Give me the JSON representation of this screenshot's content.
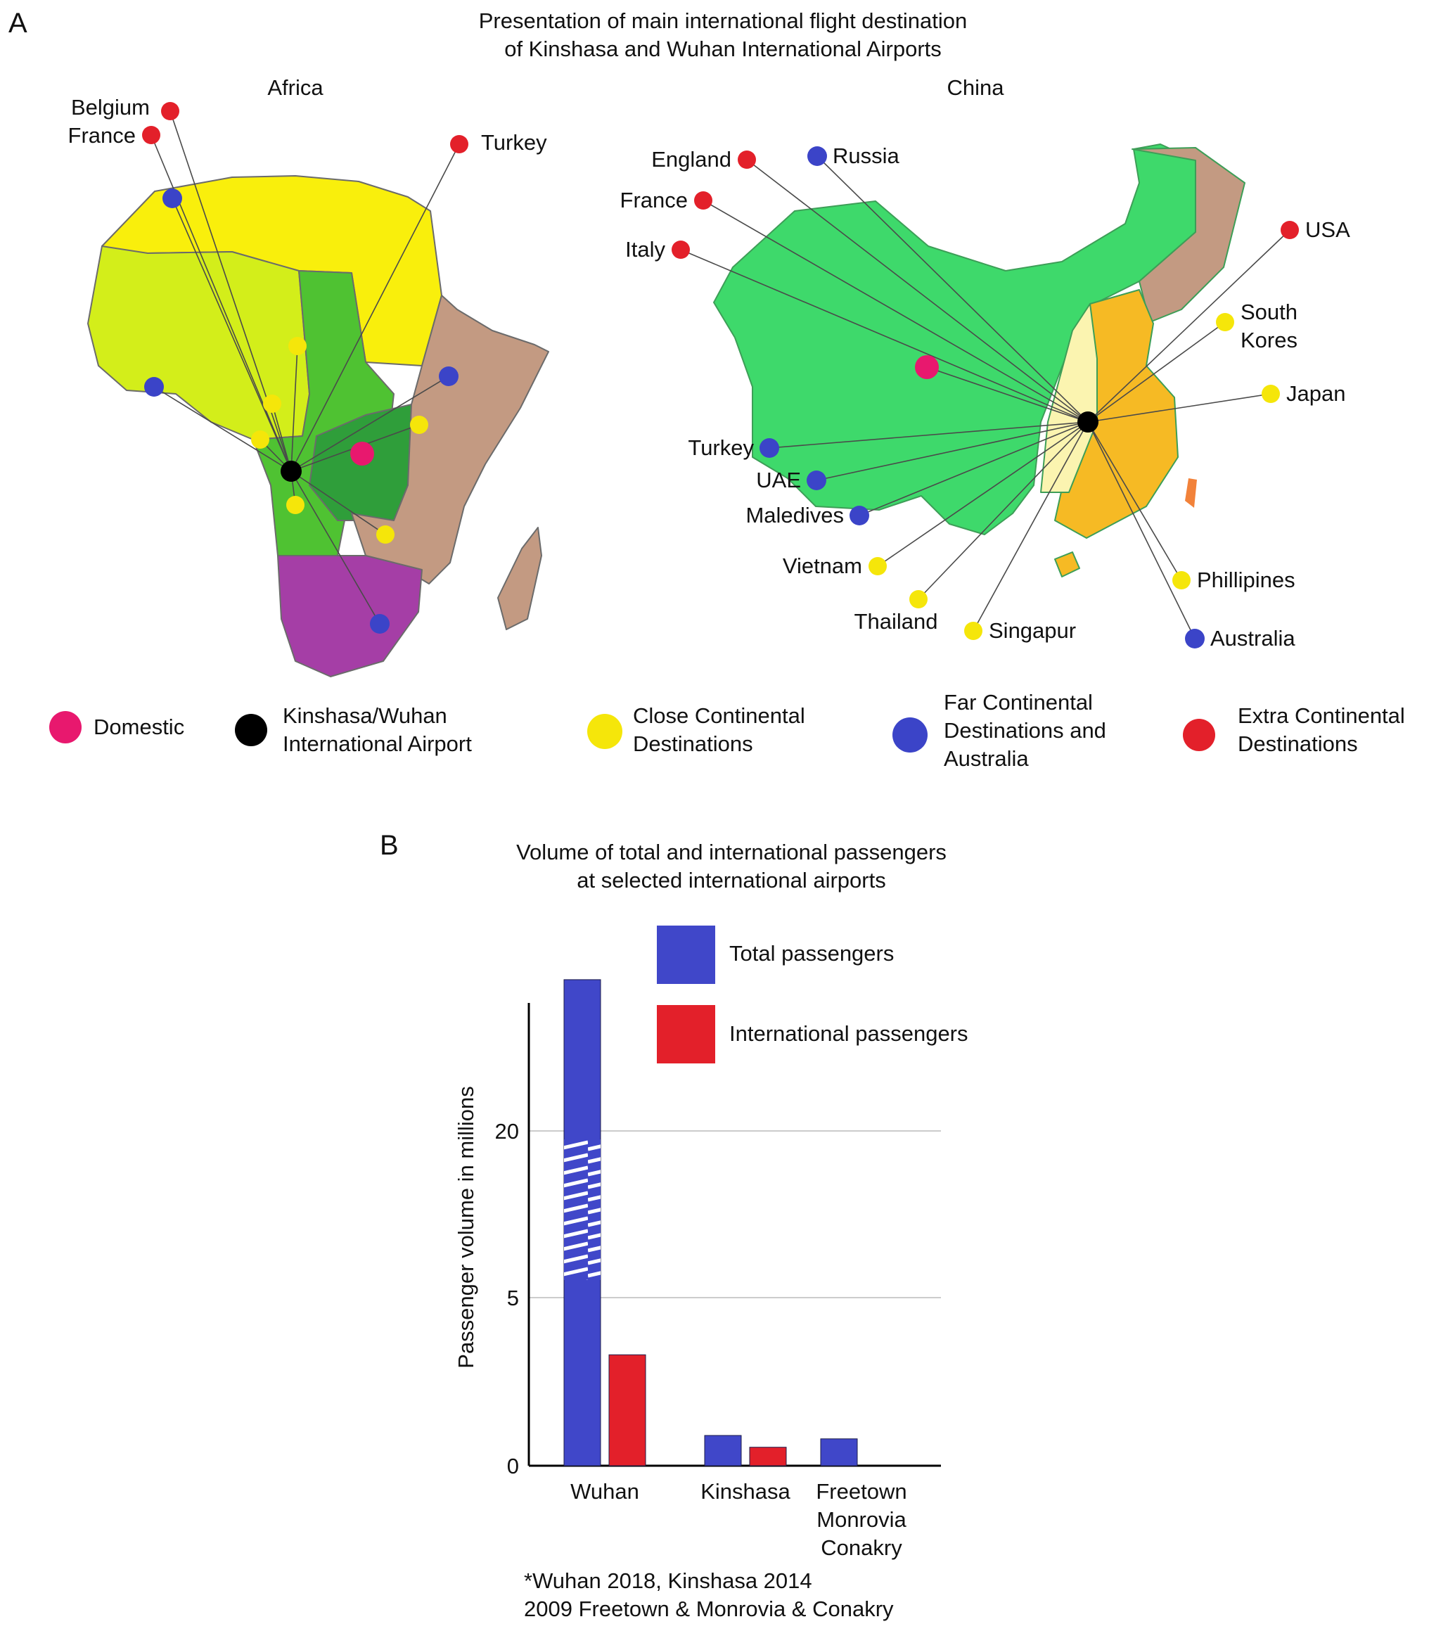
{
  "panel_a": {
    "letter": "A",
    "title_line1": "Presentation of main international flight destination",
    "title_line2": "of Kinshasa and Wuhan International Airports",
    "africa": {
      "title": "Africa",
      "destinations": [
        {
          "label": "Belgium",
          "category": "extra"
        },
        {
          "label": "France",
          "category": "extra"
        },
        {
          "label": "Turkey",
          "category": "extra"
        },
        {
          "label": "",
          "category": "far"
        },
        {
          "label": "",
          "category": "far"
        },
        {
          "label": "",
          "category": "far"
        },
        {
          "label": "",
          "category": "far"
        },
        {
          "label": "",
          "category": "domestic"
        },
        {
          "label": "",
          "category": "close"
        },
        {
          "label": "",
          "category": "close"
        },
        {
          "label": "",
          "category": "close"
        },
        {
          "label": "",
          "category": "close"
        },
        {
          "label": "",
          "category": "close"
        },
        {
          "label": "",
          "category": "close"
        }
      ]
    },
    "china": {
      "title": "China",
      "destinations": [
        {
          "label": "England",
          "category": "extra"
        },
        {
          "label": "Russia",
          "category": "far"
        },
        {
          "label": "France",
          "category": "extra"
        },
        {
          "label": "Italy",
          "category": "extra"
        },
        {
          "label": "USA",
          "category": "extra"
        },
        {
          "label": "South\nKores",
          "category": "close"
        },
        {
          "label": "Japan",
          "category": "close"
        },
        {
          "label": "Turkey",
          "category": "far"
        },
        {
          "label": "UAE",
          "category": "far"
        },
        {
          "label": "Maledives",
          "category": "far"
        },
        {
          "label": "Vietnam",
          "category": "close"
        },
        {
          "label": "Thailand",
          "category": "close"
        },
        {
          "label": "Singapur",
          "category": "close"
        },
        {
          "label": "Phillipines",
          "category": "close"
        },
        {
          "label": "Australia",
          "category": "far"
        },
        {
          "label": "",
          "category": "domestic"
        }
      ]
    },
    "legend": [
      {
        "key": "domestic",
        "lines": [
          "Domestic"
        ],
        "color": "#e8186e"
      },
      {
        "key": "hub",
        "lines": [
          "Kinshasa/Wuhan",
          "International Airport"
        ],
        "color": "#000000"
      },
      {
        "key": "close",
        "lines": [
          "Close Continental",
          "Destinations"
        ],
        "color": "#f5e60a"
      },
      {
        "key": "far",
        "lines": [
          "Far Continental",
          "Destinations and",
          "Australia"
        ],
        "color": "#3b44c8"
      },
      {
        "key": "extra",
        "lines": [
          "Extra Continental",
          "Destinations"
        ],
        "color": "#e3202a"
      }
    ]
  },
  "panel_b": {
    "letter": "B",
    "footnote_line1": "*Wuhan 2018, Kinshasa 2014",
    "footnote_line2": "2009 Freetown & Monrovia & Conakry"
  },
  "chart_data": {
    "type": "bar",
    "title": "Volume of total and international passengers\nat selected international airports",
    "ylabel": "Passenger volume in millions",
    "xlabel": "",
    "categories": [
      "Wuhan",
      "Kinshasa",
      "Freetown\nMonrovia\nConakry"
    ],
    "series": [
      {
        "name": "Total passengers",
        "color": "#4047c9",
        "values": [
          24.5,
          0.9,
          0.8
        ]
      },
      {
        "name": "International passengers",
        "color": "#e3202a",
        "values": [
          3.3,
          0.55,
          null
        ]
      }
    ],
    "ytick_labels": [
      "0",
      "5",
      "20"
    ],
    "axis_break": true,
    "grid": "horizontal",
    "legend_position": "top-right"
  }
}
